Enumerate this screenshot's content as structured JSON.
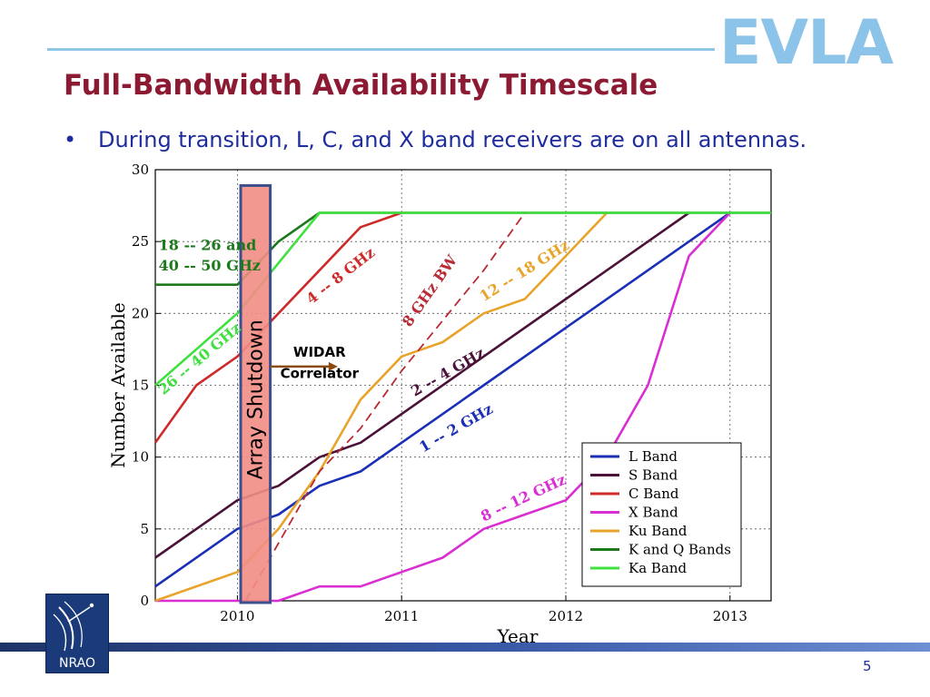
{
  "header": {
    "logo_text": "EVLA",
    "title": "Full-Bandwidth Availability Timescale",
    "bullet": "During transition, L, C, and X band receivers are on all antennas."
  },
  "footer": {
    "logo_text": "NRAO",
    "page_number": "5"
  },
  "colors": {
    "title": "#8b1a32",
    "bullet_text": "#1f2d9c",
    "logo": "#8cc3e8"
  },
  "chart_data": {
    "type": "line",
    "title": "",
    "xlabel": "Year",
    "ylabel": "Number Available",
    "xlim": [
      2009.5,
      2013.25
    ],
    "ylim": [
      0,
      30
    ],
    "x_ticks": [
      2010,
      2011,
      2012,
      2013
    ],
    "x_tick_labels": [
      "2010",
      "2011",
      "2012",
      "2013"
    ],
    "y_ticks": [
      0,
      5,
      10,
      15,
      20,
      25,
      30
    ],
    "y_tick_labels": [
      "0",
      "5",
      "10",
      "15",
      "20",
      "25",
      "30"
    ],
    "grid": true,
    "legend_position": "bottom-right",
    "series": [
      {
        "name": "L Band",
        "color": "#1a2fb5",
        "style": "solid",
        "points": [
          [
            2009.5,
            1
          ],
          [
            2010,
            5
          ],
          [
            2010.25,
            6
          ],
          [
            2010.5,
            8
          ],
          [
            2010.75,
            9
          ],
          [
            2011,
            11
          ],
          [
            2011.5,
            15
          ],
          [
            2012,
            19
          ],
          [
            2012.5,
            23
          ],
          [
            2013,
            27
          ]
        ]
      },
      {
        "name": "S Band",
        "color": "#4a1238",
        "style": "solid",
        "points": [
          [
            2009.5,
            3
          ],
          [
            2010,
            7
          ],
          [
            2010.25,
            8
          ],
          [
            2010.5,
            10
          ],
          [
            2010.75,
            11
          ],
          [
            2011,
            13
          ],
          [
            2011.5,
            17
          ],
          [
            2012,
            21
          ],
          [
            2012.5,
            25
          ],
          [
            2012.75,
            27
          ]
        ]
      },
      {
        "name": "C Band",
        "color": "#cf2a2a",
        "style": "solid",
        "points": [
          [
            2009.5,
            11
          ],
          [
            2009.75,
            15
          ],
          [
            2010,
            17
          ],
          [
            2010.25,
            20
          ],
          [
            2010.5,
            23
          ],
          [
            2010.75,
            26
          ],
          [
            2011,
            27
          ]
        ]
      },
      {
        "name": "X Band",
        "color": "#d92fd2",
        "style": "solid",
        "points": [
          [
            2009.5,
            0
          ],
          [
            2010.25,
            0
          ],
          [
            2010.5,
            1
          ],
          [
            2010.75,
            1
          ],
          [
            2011,
            2
          ],
          [
            2011.25,
            3
          ],
          [
            2011.5,
            5
          ],
          [
            2011.75,
            6
          ],
          [
            2012,
            7
          ],
          [
            2012.25,
            10
          ],
          [
            2012.5,
            15
          ],
          [
            2012.75,
            24
          ],
          [
            2013,
            27
          ]
        ]
      },
      {
        "name": "Ku Band",
        "color": "#e8a42a",
        "style": "solid",
        "points": [
          [
            2009.5,
            0
          ],
          [
            2010,
            2
          ],
          [
            2010.25,
            5
          ],
          [
            2010.5,
            9
          ],
          [
            2010.75,
            14
          ],
          [
            2011,
            17
          ],
          [
            2011.25,
            18
          ],
          [
            2011.5,
            20
          ],
          [
            2011.75,
            21
          ],
          [
            2012,
            24
          ],
          [
            2012.25,
            27
          ]
        ]
      },
      {
        "name": "K and Q Bands",
        "color": "#1c7a1c",
        "style": "solid",
        "points": [
          [
            2009.5,
            22
          ],
          [
            2010,
            22
          ],
          [
            2010.25,
            25
          ],
          [
            2010.5,
            27
          ],
          [
            2013.25,
            27
          ]
        ]
      },
      {
        "name": "Ka Band",
        "color": "#3fe03f",
        "style": "solid",
        "points": [
          [
            2009.5,
            15
          ],
          [
            2010,
            20
          ],
          [
            2010.5,
            27
          ],
          [
            2013.25,
            27
          ]
        ]
      },
      {
        "name": "",
        "color": "#b82a35",
        "style": "dashed",
        "points": [
          [
            2010.05,
            0
          ],
          [
            2010.5,
            9
          ],
          [
            2010.75,
            12
          ],
          [
            2011,
            16
          ],
          [
            2011.5,
            23
          ],
          [
            2011.75,
            27
          ]
        ]
      }
    ],
    "annotations": [
      {
        "text": "Array Shutdown",
        "kind": "shaded-region",
        "x_range": [
          2010.02,
          2010.2
        ]
      },
      {
        "text": "WIDAR",
        "kind": "arrow-label",
        "x": 2010.5,
        "y": 17
      },
      {
        "text": "Correlator",
        "kind": "arrow-label",
        "x": 2010.5,
        "y": 15.5
      },
      {
        "text": "18 -- 26 and",
        "series": "K and Q Bands",
        "x": 2009.52,
        "y": 24.4,
        "angle": 0
      },
      {
        "text": "40 -- 50 GHz",
        "series": "K and Q Bands",
        "x": 2009.52,
        "y": 23.0,
        "angle": 0
      },
      {
        "text": "26 -- 40 GHz",
        "series": "Ka Band",
        "x": 2009.55,
        "y": 14.3,
        "angle": -40
      },
      {
        "text": "4 -- 8 GHz",
        "series": "C Band",
        "x": 2010.45,
        "y": 20.6,
        "angle": -38
      },
      {
        "text": "8 GHz BW",
        "series": "",
        "x": 2011.05,
        "y": 19.0,
        "angle": -55
      },
      {
        "text": "12 -- 18 GHz",
        "series": "Ku Band",
        "x": 2011.5,
        "y": 20.8,
        "angle": -32
      },
      {
        "text": "2 -- 4 GHz",
        "series": "S Band",
        "x": 2011.08,
        "y": 14.2,
        "angle": -30
      },
      {
        "text": "1 -- 2 GHz",
        "series": "L Band",
        "x": 2011.13,
        "y": 10.3,
        "angle": -30
      },
      {
        "text": "8 -- 12 GHz",
        "series": "X Band",
        "x": 2011.5,
        "y": 5.5,
        "angle": -25
      }
    ]
  }
}
